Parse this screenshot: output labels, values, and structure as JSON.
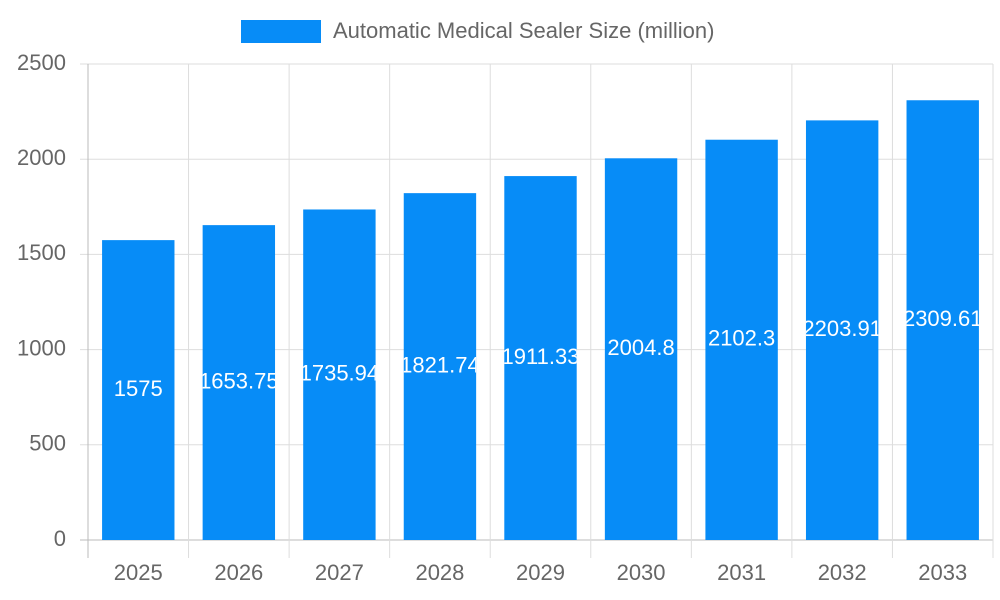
{
  "chart_data": {
    "type": "bar",
    "series": [
      {
        "name": "Automatic Medical Sealer Size (million)",
        "color": "#078cf7",
        "values": [
          1575,
          1653.75,
          1735.94,
          1821.74,
          1911.33,
          2004.8,
          2102.3,
          2203.91,
          2309.61
        ]
      }
    ],
    "categories": [
      "2025",
      "2026",
      "2027",
      "2028",
      "2029",
      "2030",
      "2031",
      "2032",
      "2033"
    ],
    "ylim": [
      0,
      2500
    ],
    "yticks": [
      0,
      500,
      1000,
      1500,
      2000,
      2500
    ],
    "grid": true,
    "legend": "top"
  }
}
